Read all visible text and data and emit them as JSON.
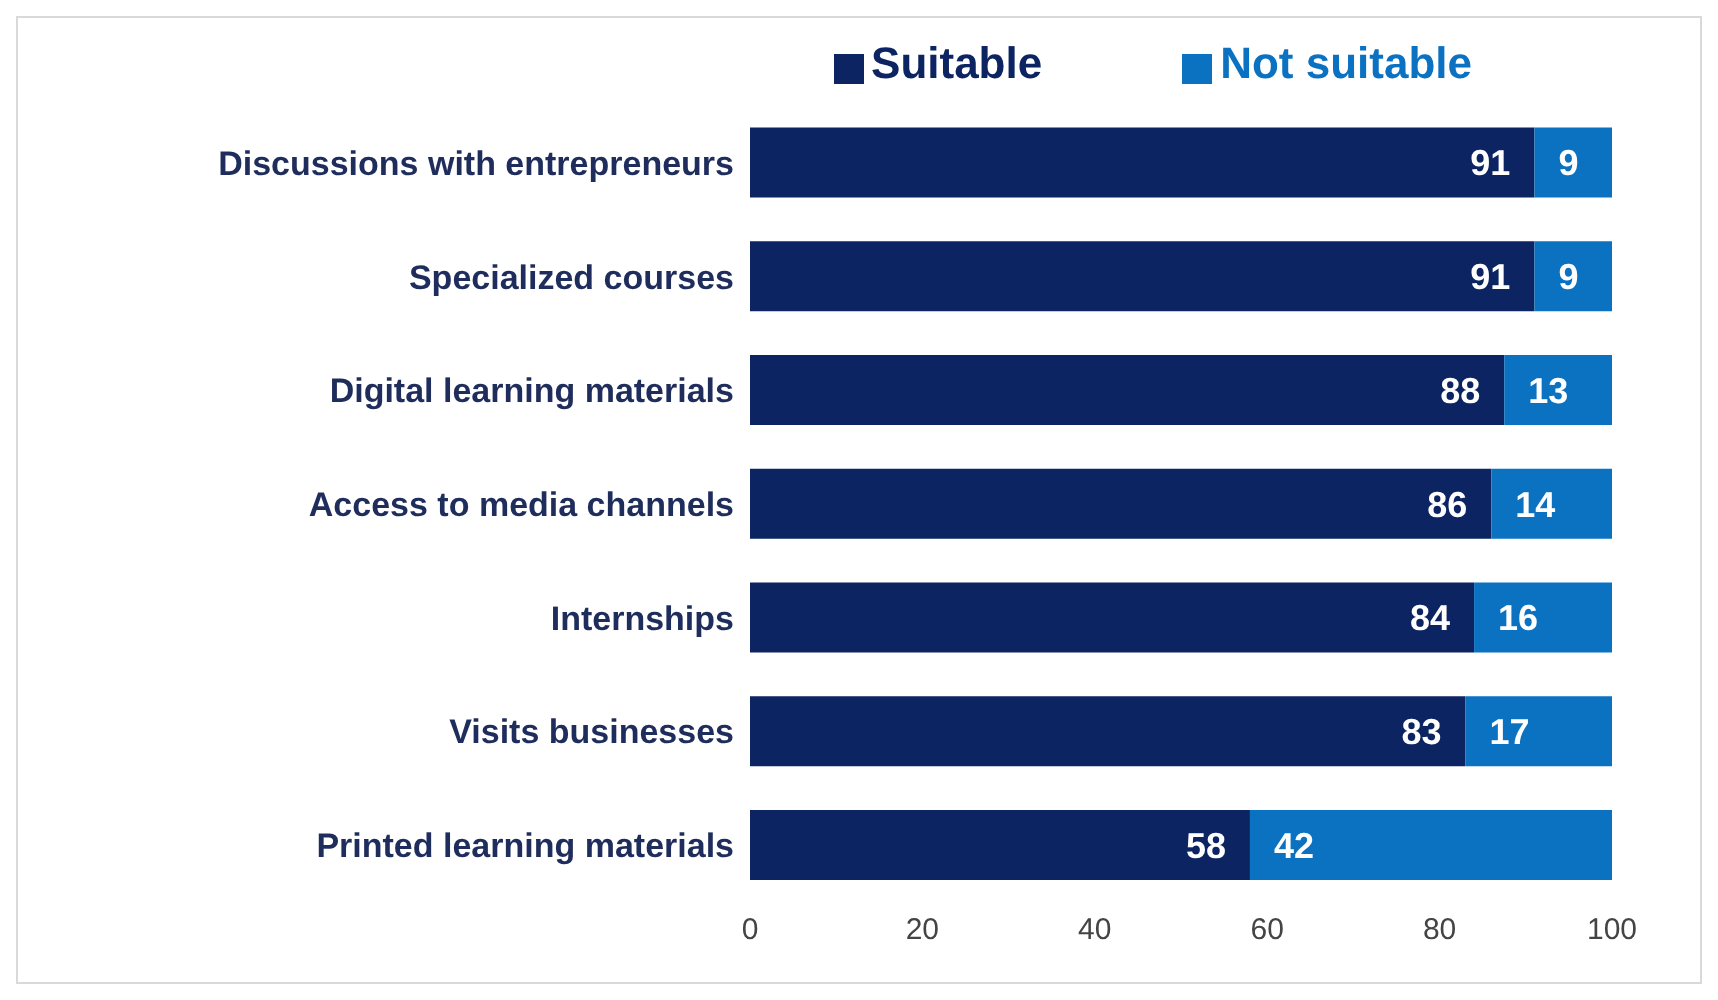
{
  "chart_data": {
    "type": "bar",
    "orientation": "horizontal",
    "stacked": true,
    "categories": [
      "Discussions with entrepreneurs",
      "Specialized courses",
      "Digital learning materials",
      "Access to media channels",
      "Internships",
      "Visits businesses",
      "Printed learning materials"
    ],
    "series": [
      {
        "name": "Suitable",
        "color": "#0c2461",
        "values": [
          91,
          91,
          87.5,
          86,
          84,
          83,
          58
        ],
        "value_labels": [
          "91",
          "91",
          "88",
          "86",
          "84",
          "83",
          "58"
        ]
      },
      {
        "name": "Not suitable",
        "color": "#0b72c2",
        "values": [
          9,
          9,
          12.5,
          14,
          16,
          17,
          42
        ],
        "value_labels": [
          "9",
          "9",
          "13",
          "14",
          "16",
          "17",
          "42"
        ]
      }
    ],
    "xlim": [
      0,
      100
    ],
    "xticks": [
      0,
      20,
      40,
      60,
      80,
      100
    ],
    "grid": false,
    "legend": "top right",
    "data_labels": true
  }
}
